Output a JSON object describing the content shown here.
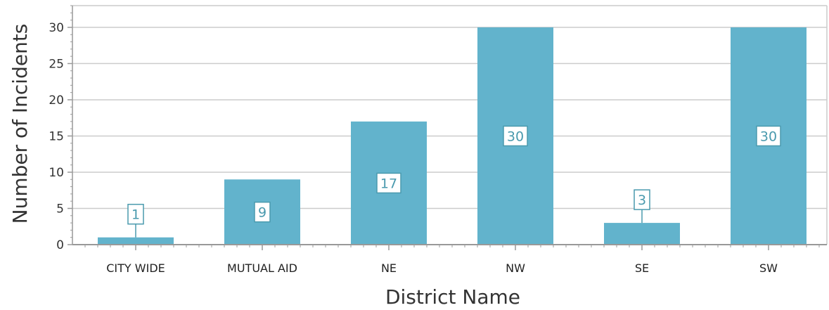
{
  "chart_data": {
    "type": "bar",
    "title": "",
    "xlabel": "District Name",
    "ylabel": "Number of Incidents",
    "categories": [
      "CITY WIDE",
      "MUTUAL AID",
      "NE",
      "NW",
      "SE",
      "SW"
    ],
    "values": [
      1,
      9,
      17,
      30,
      3,
      30
    ],
    "ylim": [
      0,
      33
    ],
    "yticks": [
      0,
      5,
      10,
      15,
      20,
      25,
      30
    ],
    "grid": true,
    "legend": "none",
    "data_labels": true,
    "colors": {
      "bar": "#62b3cc",
      "gridline": "#cccccc",
      "axis": "#999999",
      "label_text": "#4a9aae",
      "label_border": "#4a9aae"
    }
  }
}
